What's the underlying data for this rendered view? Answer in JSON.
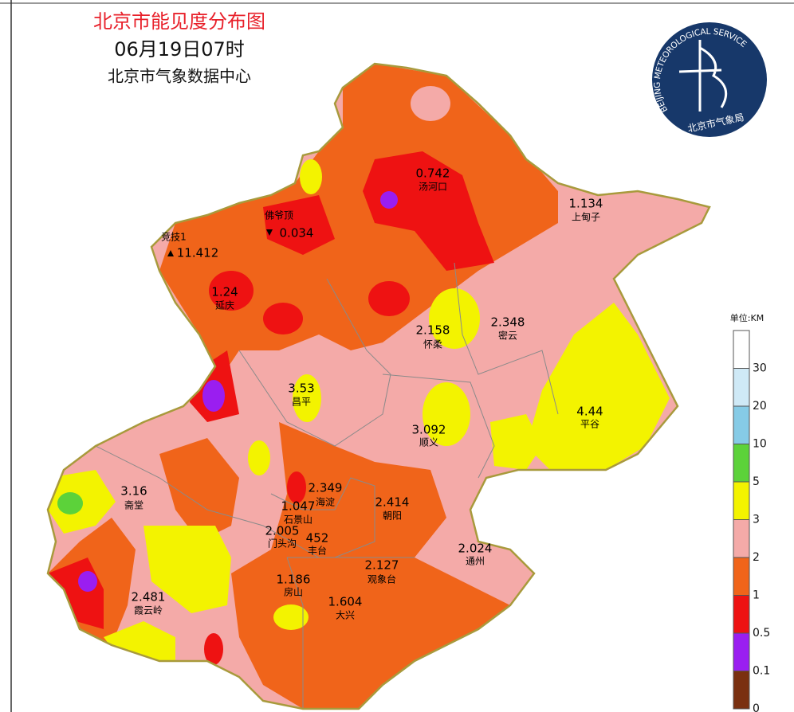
{
  "header": {
    "title": "北京市能见度分布图",
    "time": "06月19日07时",
    "source": "北京市气象数据中心"
  },
  "logo": {
    "ring_text": "BEIJING METEOROLOGICAL SERVICE",
    "name": "北京市气象局"
  },
  "stations": [
    {
      "name": "汤河口",
      "value": "0.742"
    },
    {
      "name": "上甸子",
      "value": "1.134"
    },
    {
      "name": "佛爷顶",
      "value": "0.034"
    },
    {
      "name": "竞技1",
      "value": "11.412"
    },
    {
      "name": "延庆",
      "value": "1.24"
    },
    {
      "name": "怀柔",
      "value": "2.158"
    },
    {
      "name": "密云",
      "value": "2.348"
    },
    {
      "name": "昌平",
      "value": "3.53"
    },
    {
      "name": "平谷",
      "value": "4.44"
    },
    {
      "name": "顺义",
      "value": "3.092"
    },
    {
      "name": "斋堂",
      "value": "3.16"
    },
    {
      "name": "海淀",
      "value": "2.349"
    },
    {
      "name": "朝阳",
      "value": "2.414"
    },
    {
      "name": "石景山",
      "value": "1.047"
    },
    {
      "name": "门头沟",
      "value": "2.005"
    },
    {
      "name": "丰台",
      "value": "452"
    },
    {
      "name": "通州",
      "value": "2.024"
    },
    {
      "name": "观象台",
      "value": "2.127"
    },
    {
      "name": "房山",
      "value": "1.186"
    },
    {
      "name": "霞云岭",
      "value": "2.481"
    },
    {
      "name": "大兴",
      "value": "1.604"
    }
  ],
  "legend": {
    "unit": "单位:KM",
    "entries": [
      {
        "label": "30",
        "color": "#ffffff"
      },
      {
        "label": "20",
        "color": "#cfe9f6"
      },
      {
        "label": "10",
        "color": "#86cbe6"
      },
      {
        "label": "5",
        "color": "#5cd23a"
      },
      {
        "label": "3",
        "color": "#f3f300"
      },
      {
        "label": "2",
        "color": "#f4aaa8"
      },
      {
        "label": "1",
        "color": "#f0641a"
      },
      {
        "label": "0.5",
        "color": "#ee1212"
      },
      {
        "label": "0.1",
        "color": "#9a1ef0"
      },
      {
        "label": "0",
        "color": "#7a3010"
      }
    ]
  }
}
